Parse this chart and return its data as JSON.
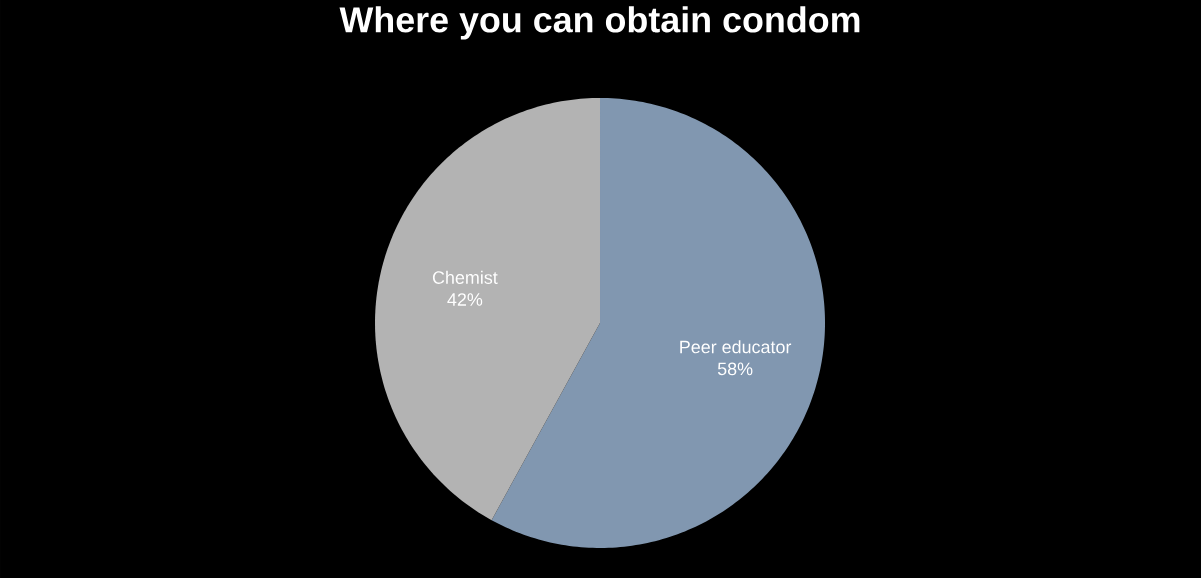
{
  "chart_data": {
    "type": "pie",
    "title": "Where you can obtain condom",
    "categories": [
      "Peer educator",
      "Chemist"
    ],
    "values": [
      58,
      42
    ],
    "value_labels": [
      "58%",
      "42%"
    ],
    "colors": [
      "#8197b0",
      "#b3b3b3"
    ]
  }
}
